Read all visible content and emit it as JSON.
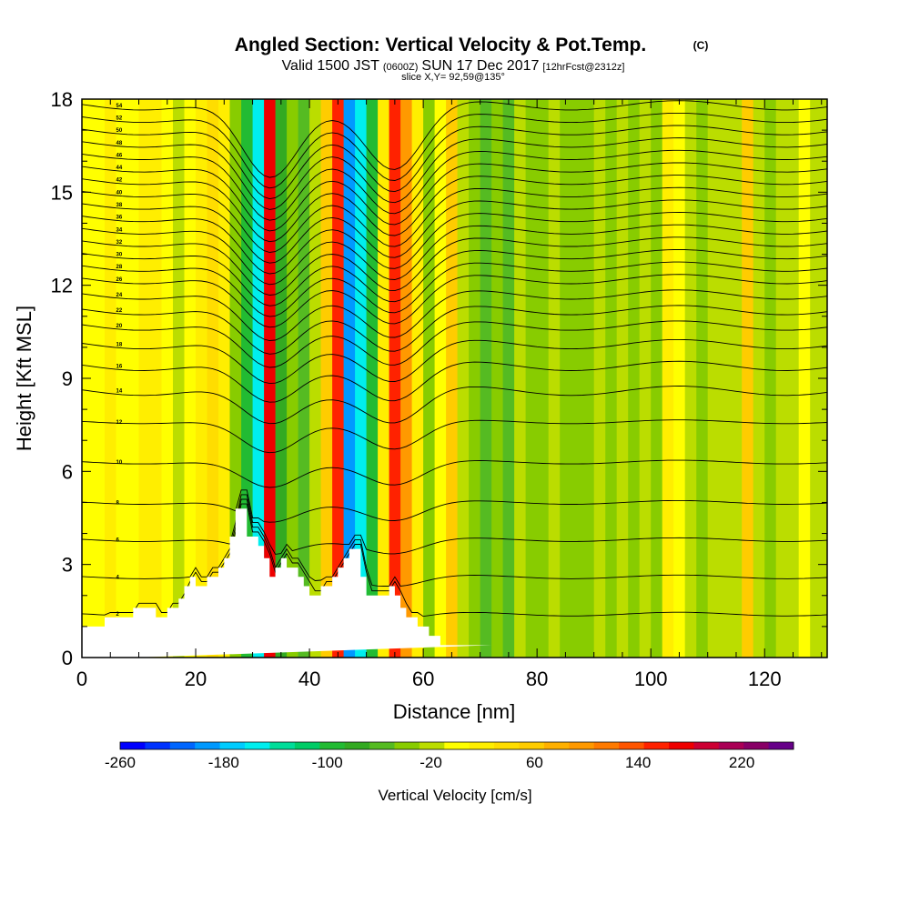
{
  "title": {
    "main": "Angled Section: Vertical Velocity & Pot.Temp.",
    "copyright": "(C)",
    "valid_prefix": "Valid 1500 JST",
    "valid_utc": "(0600Z)",
    "valid_date": "SUN 17 Dec 2017",
    "forecast": "[12hrFcst@2312z]",
    "slice": "slice X,Y= 92,59@135°"
  },
  "chart_data": {
    "type": "heatmap",
    "title": "Angled Section: Vertical Velocity & Pot.Temp.",
    "xlabel": "Distance [nm]",
    "ylabel": "Height [Kft MSL]",
    "xlim": [
      0,
      131
    ],
    "ylim": [
      0,
      18
    ],
    "x_ticks": [
      0,
      20,
      40,
      60,
      80,
      100,
      120
    ],
    "y_ticks": [
      0,
      3,
      6,
      9,
      12,
      15,
      18
    ],
    "x_tick_labels": [
      "0",
      "20",
      "40",
      "60",
      "80",
      "100",
      "120"
    ],
    "y_tick_labels": [
      "0",
      "3",
      "6",
      "9",
      "12",
      "15",
      "18"
    ],
    "colorbar": {
      "label": "Vertical Velocity [cm/s]",
      "min": -260,
      "max": 260,
      "step": 20,
      "tick_values": [
        -260,
        -180,
        -100,
        -20,
        60,
        140,
        220
      ],
      "tick_labels": [
        "-260",
        "-180",
        "-100",
        "-20",
        "60",
        "140",
        "220"
      ],
      "colors": [
        "#0000ff",
        "#0033ff",
        "#0066ff",
        "#0099ff",
        "#00ccff",
        "#00eeee",
        "#00dd99",
        "#00cc66",
        "#22bb33",
        "#33aa22",
        "#55bb22",
        "#88cc00",
        "#bbdd00",
        "#ffff00",
        "#ffee00",
        "#ffdd00",
        "#ffcc00",
        "#ffb000",
        "#ff9900",
        "#ff7a00",
        "#ff5500",
        "#ff2200",
        "#ee0000",
        "#cc0033",
        "#aa0055",
        "#880066",
        "#660088"
      ]
    },
    "vertical_velocity_columns": [
      {
        "x": 0,
        "w": 10
      },
      {
        "x": 2,
        "w": 10
      },
      {
        "x": 4,
        "w": 20
      },
      {
        "x": 6,
        "w": 10
      },
      {
        "x": 8,
        "w": 10
      },
      {
        "x": 10,
        "w": 20
      },
      {
        "x": 12,
        "w": 30
      },
      {
        "x": 14,
        "w": 10
      },
      {
        "x": 16,
        "w": -20
      },
      {
        "x": 18,
        "w": 10
      },
      {
        "x": 20,
        "w": 30
      },
      {
        "x": 22,
        "w": 40
      },
      {
        "x": 24,
        "w": 20
      },
      {
        "x": 26,
        "w": -40
      },
      {
        "x": 28,
        "w": -100
      },
      {
        "x": 30,
        "w": -150
      },
      {
        "x": 32,
        "w": 190
      },
      {
        "x": 34,
        "w": -80
      },
      {
        "x": 36,
        "w": -40
      },
      {
        "x": 38,
        "w": -60
      },
      {
        "x": 40,
        "w": -20
      },
      {
        "x": 42,
        "w": 60
      },
      {
        "x": 44,
        "w": 170
      },
      {
        "x": 46,
        "w": -190
      },
      {
        "x": 48,
        "w": -150
      },
      {
        "x": 50,
        "w": -90
      },
      {
        "x": 52,
        "w": 30
      },
      {
        "x": 54,
        "w": 160
      },
      {
        "x": 56,
        "w": 110
      },
      {
        "x": 58,
        "w": 30
      },
      {
        "x": 60,
        "w": -30
      },
      {
        "x": 62,
        "w": 10
      },
      {
        "x": 64,
        "w": 70
      },
      {
        "x": 66,
        "w": -20
      },
      {
        "x": 68,
        "w": -40
      },
      {
        "x": 70,
        "w": -50
      },
      {
        "x": 72,
        "w": -30
      },
      {
        "x": 74,
        "w": -50
      },
      {
        "x": 76,
        "w": -20
      },
      {
        "x": 78,
        "w": -40
      },
      {
        "x": 80,
        "w": -30
      },
      {
        "x": 82,
        "w": -20
      },
      {
        "x": 84,
        "w": -40
      },
      {
        "x": 86,
        "w": -30
      },
      {
        "x": 88,
        "w": -40
      },
      {
        "x": 90,
        "w": -20
      },
      {
        "x": 92,
        "w": -30
      },
      {
        "x": 94,
        "w": -20
      },
      {
        "x": 96,
        "w": -30
      },
      {
        "x": 98,
        "w": -20
      },
      {
        "x": 100,
        "w": -30
      },
      {
        "x": 102,
        "w": 20
      },
      {
        "x": 104,
        "w": 10
      },
      {
        "x": 106,
        "w": -20
      },
      {
        "x": 108,
        "w": -30
      },
      {
        "x": 110,
        "w": -20
      },
      {
        "x": 112,
        "w": -10
      },
      {
        "x": 114,
        "w": -20
      },
      {
        "x": 116,
        "w": 60
      },
      {
        "x": 118,
        "w": -20
      },
      {
        "x": 120,
        "w": -30
      },
      {
        "x": 122,
        "w": -20
      },
      {
        "x": 124,
        "w": -20
      },
      {
        "x": 126,
        "w": 10
      },
      {
        "x": 128,
        "w": -20
      },
      {
        "x": 130,
        "w": -20
      }
    ],
    "terrain": {
      "x": [
        0,
        4,
        4,
        9,
        9,
        13,
        13,
        15,
        15,
        17,
        17,
        18,
        18,
        19,
        19,
        20,
        20,
        22,
        22,
        24,
        24,
        25,
        25,
        26,
        26,
        27,
        27,
        28,
        28,
        29,
        29,
        31,
        31,
        32,
        32,
        33,
        33,
        34,
        34,
        35,
        35,
        36,
        36,
        38,
        38,
        39,
        39,
        40,
        40,
        41,
        41,
        42,
        42,
        44,
        44,
        45,
        45,
        46,
        46,
        47,
        47,
        48,
        48,
        49,
        49,
        50,
        50,
        53,
        53,
        54,
        54,
        55,
        55,
        56,
        56,
        57,
        57,
        59,
        59,
        61,
        61,
        63,
        63,
        65,
        65,
        66,
        66,
        67,
        67,
        69,
        69,
        71,
        71,
        72,
        72,
        131
      ],
      "y": [
        1.0,
        1.0,
        1.3,
        1.3,
        1.6,
        1.6,
        1.3,
        1.3,
        1.6,
        1.6,
        1.9,
        1.9,
        2.3,
        2.3,
        2.6,
        2.6,
        2.3,
        2.3,
        2.6,
        2.6,
        2.9,
        2.9,
        3.2,
        3.2,
        3.9,
        3.9,
        4.8,
        4.8,
        4.8,
        4.8,
        3.9,
        3.9,
        3.6,
        3.6,
        3.2,
        3.2,
        2.6,
        2.6,
        2.9,
        2.9,
        3.2,
        3.2,
        2.9,
        2.9,
        2.6,
        2.6,
        2.3,
        2.3,
        2.0,
        2.0,
        2.0,
        2.0,
        2.3,
        2.3,
        2.6,
        2.6,
        2.9,
        2.9,
        3.2,
        3.2,
        3.5,
        3.5,
        3.5,
        3.5,
        2.6,
        2.6,
        2.0,
        2.0,
        2.0,
        2.0,
        2.3,
        2.3,
        2.0,
        2.0,
        1.6,
        1.6,
        1.3,
        1.3,
        1.0,
        1.0,
        0.7,
        0.7,
        0.4,
        0.4,
        0.4,
        0.4,
        0.4,
        0.4,
        0.4,
        0.4,
        0.4,
        0.4,
        0.4,
        0.4,
        0.4
      ]
    },
    "isentropes_kft": [
      1.4,
      2.6,
      3.8,
      5.0,
      6.3,
      7.6,
      8.6,
      9.4,
      10.1,
      10.7,
      11.2,
      11.7,
      12.2,
      12.6,
      13.0,
      13.4,
      13.8,
      14.2,
      14.6,
      15.0,
      15.4,
      15.8,
      16.2,
      16.6,
      17.0,
      17.4,
      17.8
    ],
    "isentrope_labels": [
      "2",
      "4",
      "6",
      "8",
      "10",
      "12",
      "14",
      "16",
      "18",
      "20",
      "22",
      "24",
      "26",
      "28",
      "30",
      "32",
      "34",
      "36",
      "38",
      "40",
      "42",
      "44",
      "46",
      "48",
      "50",
      "52",
      "54"
    ]
  }
}
